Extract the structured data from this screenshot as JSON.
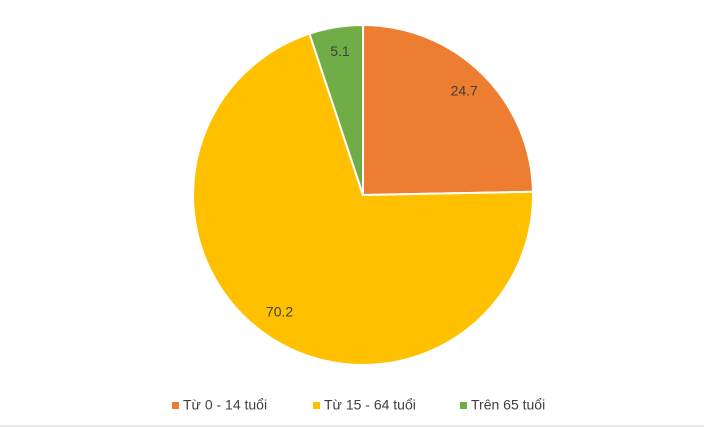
{
  "chart_data": {
    "type": "pie",
    "categories": [
      "Từ 0 - 14 tuổi",
      "Từ 15 - 64 tuổi",
      "Trên 65 tuổi"
    ],
    "values": [
      24.7,
      70.2,
      5.1
    ],
    "colors": [
      "#ed7d31",
      "#ffc000",
      "#70ad47"
    ],
    "legend": "bottom"
  }
}
